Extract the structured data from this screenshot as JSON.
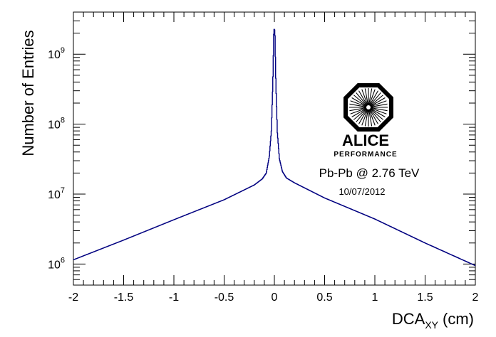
{
  "chart_data": {
    "type": "line",
    "title": "",
    "xlabel": "DCA",
    "xlabel_sub": "XY",
    "xlabel_unit": "(cm)",
    "ylabel": "Number of Entries",
    "xlim": [
      -2,
      2
    ],
    "ylim": [
      500000,
      4000000000
    ],
    "yscale": "log",
    "grid": false,
    "legend": "none",
    "line_color": "#000080",
    "x_ticks": [
      -2,
      -1.5,
      -1,
      -0.5,
      0,
      0.5,
      1,
      1.5,
      2
    ],
    "x_tick_labels": [
      "-2",
      "-1.5",
      "-1",
      "-0.5",
      "0",
      "0.5",
      "1",
      "1.5",
      "2"
    ],
    "y_ticks": [
      1000000,
      10000000,
      100000000,
      1000000000
    ],
    "y_tick_labels": [
      {
        "base": "10",
        "exp": "6"
      },
      {
        "base": "10",
        "exp": "7"
      },
      {
        "base": "10",
        "exp": "8"
      },
      {
        "base": "10",
        "exp": "9"
      }
    ],
    "series": [
      {
        "values_x": [
          -2.0,
          -1.5,
          -1.0,
          -0.5,
          -0.2,
          -0.12,
          -0.08,
          -0.05,
          -0.03,
          -0.015,
          -0.005,
          0.005,
          0.015,
          0.03,
          0.05,
          0.08,
          0.12,
          0.2,
          0.5,
          1.0,
          1.5,
          2.0
        ],
        "values_y": [
          1150000,
          2200000,
          4300000,
          8300000,
          13500000,
          16500000,
          20000000,
          35000000,
          80000000,
          400000000,
          2300000000,
          2200000000,
          380000000,
          75000000,
          32000000,
          21000000,
          17000000,
          14500000,
          8800000,
          4400000,
          2000000,
          950000
        ]
      }
    ],
    "annotations": {
      "collision": "Pb-Pb @ 2.76 TeV",
      "date": "10/07/2012",
      "collision_color": "#7a1414"
    },
    "logo": {
      "word": "ALICE",
      "subword": "PERFORMANCE"
    }
  }
}
